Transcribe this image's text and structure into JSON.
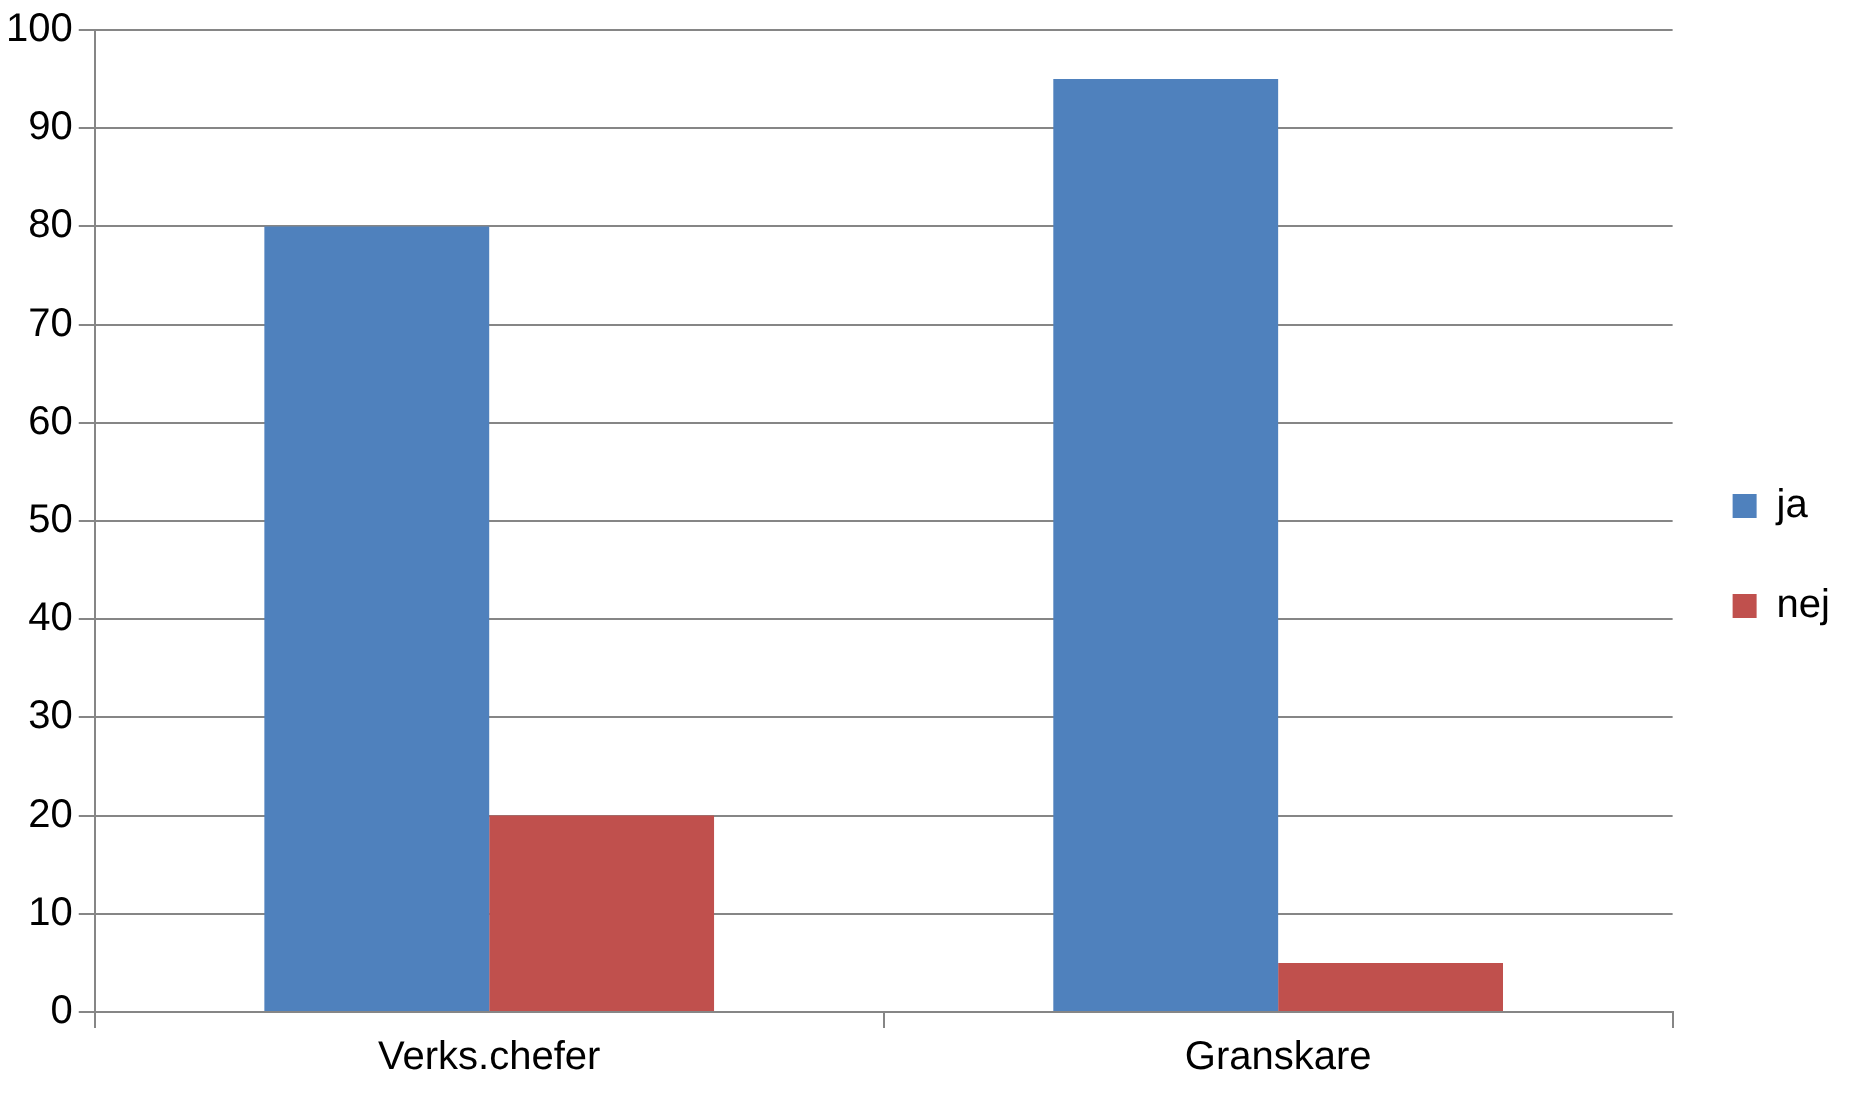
{
  "chart_data": {
    "type": "bar",
    "categories": [
      "Verks.chefer",
      "Granskare"
    ],
    "series": [
      {
        "name": "ja",
        "color": "#4f81bd",
        "values": [
          80,
          95
        ]
      },
      {
        "name": "nej",
        "color": "#c0504d",
        "values": [
          20,
          5
        ]
      }
    ],
    "ylim": [
      0,
      100
    ],
    "yticks": [
      0,
      10,
      20,
      30,
      40,
      50,
      60,
      70,
      80,
      90,
      100
    ],
    "grid": "y",
    "legend": "right"
  }
}
